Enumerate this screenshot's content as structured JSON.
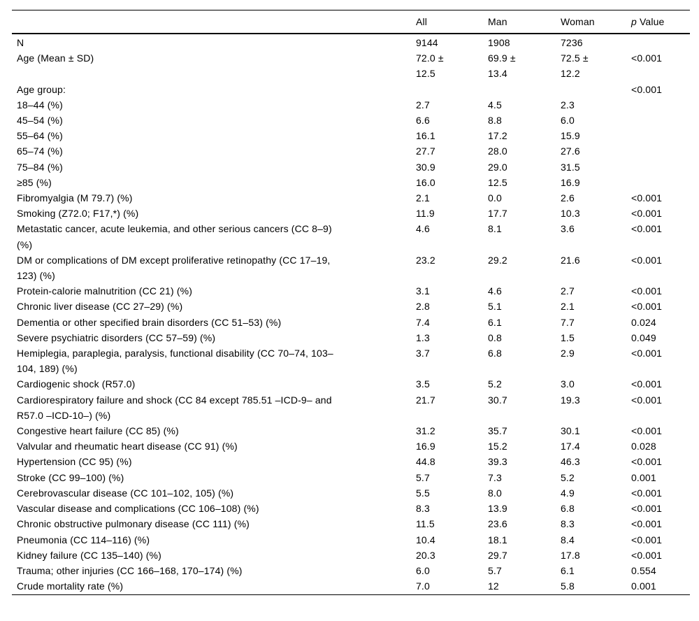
{
  "page": {
    "background": "#ffffff",
    "text_color": "#000000",
    "rule_color": "#000000"
  },
  "table": {
    "header": {
      "label": "",
      "all": "All",
      "man": "Man",
      "woman": "Woman",
      "p_italic": "p",
      "p_rest": "Value"
    },
    "rows": [
      {
        "label": "N",
        "all": "9144",
        "man": "1908",
        "woman": "7236",
        "p": ""
      },
      {
        "label": "Age (Mean ± SD)",
        "all": "72.0 ±\n12.5",
        "man": "69.9 ±\n13.4",
        "woman": "72.5 ±\n12.2",
        "p": "<0.001"
      },
      {
        "label": "Age group:",
        "all": "",
        "man": "",
        "woman": "",
        "p": "<0.001"
      },
      {
        "label": "18–44 (%)",
        "all": "2.7",
        "man": "4.5",
        "woman": "2.3",
        "p": ""
      },
      {
        "label": "45–54 (%)",
        "all": "6.6",
        "man": "8.8",
        "woman": "6.0",
        "p": ""
      },
      {
        "label": "55–64 (%)",
        "all": "16.1",
        "man": "17.2",
        "woman": "15.9",
        "p": ""
      },
      {
        "label": "65–74 (%)",
        "all": "27.7",
        "man": "28.0",
        "woman": "27.6",
        "p": ""
      },
      {
        "label": "75–84 (%)",
        "all": "30.9",
        "man": "29.0",
        "woman": "31.5",
        "p": ""
      },
      {
        "label": "≥85 (%)",
        "all": "16.0",
        "man": "12.5",
        "woman": "16.9",
        "p": ""
      },
      {
        "label": "Fibromyalgia (M 79.7) (%)",
        "all": "2.1",
        "man": "0.0",
        "woman": "2.6",
        "p": "<0.001"
      },
      {
        "label": "Smoking (Z72.0; F17,*) (%)",
        "all": "11.9",
        "man": "17.7",
        "woman": "10.3",
        "p": "<0.001"
      },
      {
        "label": "Metastatic cancer, acute leukemia, and other serious cancers (CC 8–9)\n(%)",
        "all": "4.6",
        "man": "8.1",
        "woman": "3.6",
        "p": "<0.001"
      },
      {
        "label": "DM or complications of DM except proliferative retinopathy (CC 17–19,\n123) (%)",
        "all": "23.2",
        "man": "29.2",
        "woman": "21.6",
        "p": "<0.001"
      },
      {
        "label": "Protein-calorie malnutrition (CC 21) (%)",
        "all": "3.1",
        "man": "4.6",
        "woman": "2.7",
        "p": "<0.001"
      },
      {
        "label": "Chronic liver disease (CC 27–29) (%)",
        "all": "2.8",
        "man": "5.1",
        "woman": "2.1",
        "p": "<0.001"
      },
      {
        "label": "Dementia or other specified brain disorders (CC 51–53) (%)",
        "all": "7.4",
        "man": "6.1",
        "woman": "7.7",
        "p": "0.024"
      },
      {
        "label": "Severe psychiatric disorders (CC 57–59) (%)",
        "all": "1.3",
        "man": "0.8",
        "woman": "1.5",
        "p": "0.049"
      },
      {
        "label": "Hemiplegia, paraplegia, paralysis, functional disability (CC 70–74, 103–\n104, 189) (%)",
        "all": "3.7",
        "man": "6.8",
        "woman": "2.9",
        "p": "<0.001"
      },
      {
        "label": "Cardiogenic shock (R57.0)",
        "all": "3.5",
        "man": "5.2",
        "woman": "3.0",
        "p": "<0.001"
      },
      {
        "label": "Cardiorespiratory failure and shock (CC 84 except 785.51 –ICD-9– and\nR57.0 –ICD-10–) (%)",
        "all": "21.7",
        "man": "30.7",
        "woman": "19.3",
        "p": "<0.001"
      },
      {
        "label": "Congestive heart failure (CC 85) (%)",
        "all": "31.2",
        "man": "35.7",
        "woman": "30.1",
        "p": "<0.001"
      },
      {
        "label": "Valvular and rheumatic heart disease (CC 91) (%)",
        "all": "16.9",
        "man": "15.2",
        "woman": "17.4",
        "p": "0.028"
      },
      {
        "label": "Hypertension (CC 95) (%)",
        "all": "44.8",
        "man": "39.3",
        "woman": "46.3",
        "p": "<0.001"
      },
      {
        "label": "Stroke (CC 99–100) (%)",
        "all": "5.7",
        "man": "7.3",
        "woman": "5.2",
        "p": "0.001"
      },
      {
        "label": "Cerebrovascular disease (CC 101–102, 105) (%)",
        "all": "5.5",
        "man": "8.0",
        "woman": "4.9",
        "p": "<0.001"
      },
      {
        "label": "Vascular disease and complications (CC 106–108) (%)",
        "all": "8.3",
        "man": "13.9",
        "woman": "6.8",
        "p": "<0.001"
      },
      {
        "label": "Chronic obstructive pulmonary disease (CC 111) (%)",
        "all": "11.5",
        "man": "23.6",
        "woman": "8.3",
        "p": "<0.001"
      },
      {
        "label": "Pneumonia (CC 114–116) (%)",
        "all": "10.4",
        "man": "18.1",
        "woman": "8.4",
        "p": "<0.001"
      },
      {
        "label": "Kidney failure (CC 135–140) (%)",
        "all": "20.3",
        "man": "29.7",
        "woman": "17.8",
        "p": "<0.001"
      },
      {
        "label": "Trauma; other injuries (CC 166–168, 170–174) (%)",
        "all": "6.0",
        "man": "5.7",
        "woman": "6.1",
        "p": "0.554"
      },
      {
        "label": "Crude mortality rate (%)",
        "all": "7.0",
        "man": "12",
        "woman": "5.8",
        "p": "0.001"
      }
    ]
  }
}
